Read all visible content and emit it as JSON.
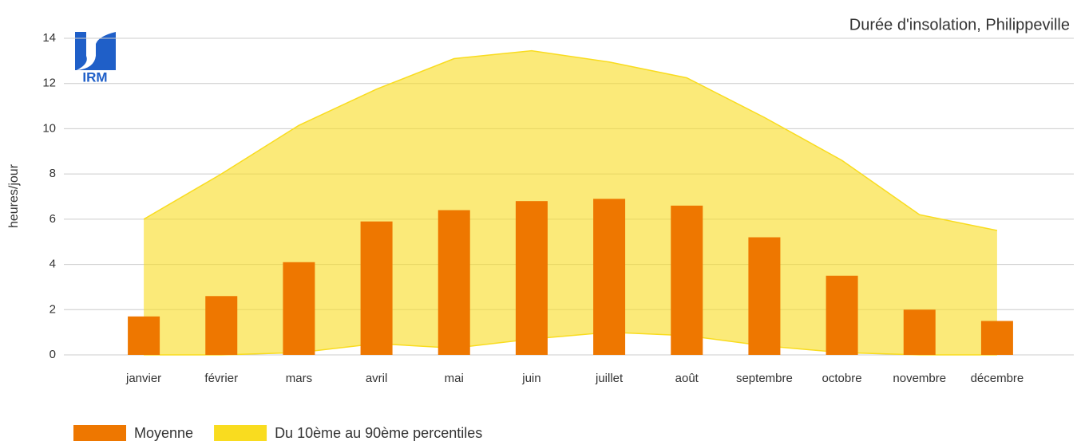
{
  "chart_data": {
    "type": "bar",
    "title": "Durée d'insolation, Philippeville",
    "logo": "IRM",
    "y_label": "heures/jour",
    "categories": [
      "janvier",
      "février",
      "mars",
      "avril",
      "mai",
      "juin",
      "juillet",
      "août",
      "septembre",
      "octobre",
      "novembre",
      "décembre"
    ],
    "series": [
      {
        "name": "Moyenne",
        "type": "bar",
        "color": "#ee7700",
        "values": [
          1.7,
          2.6,
          4.1,
          5.9,
          6.4,
          6.8,
          6.9,
          6.6,
          5.2,
          3.5,
          2.0,
          1.5
        ]
      },
      {
        "name": "Du 10ème au 90ème percentiles",
        "type": "band",
        "color": "#f9dc1f",
        "low": [
          0,
          0,
          0.1,
          0.5,
          0.3,
          0.7,
          1.0,
          0.85,
          0.4,
          0.1,
          0,
          0
        ],
        "high": [
          6.0,
          8.0,
          10.15,
          11.75,
          13.1,
          13.45,
          12.95,
          12.25,
          10.5,
          8.6,
          6.2,
          5.5
        ]
      }
    ],
    "ylim": [
      0,
      14
    ],
    "yticks": [
      0,
      2,
      4,
      6,
      8,
      10,
      12,
      14
    ],
    "grid": true
  }
}
